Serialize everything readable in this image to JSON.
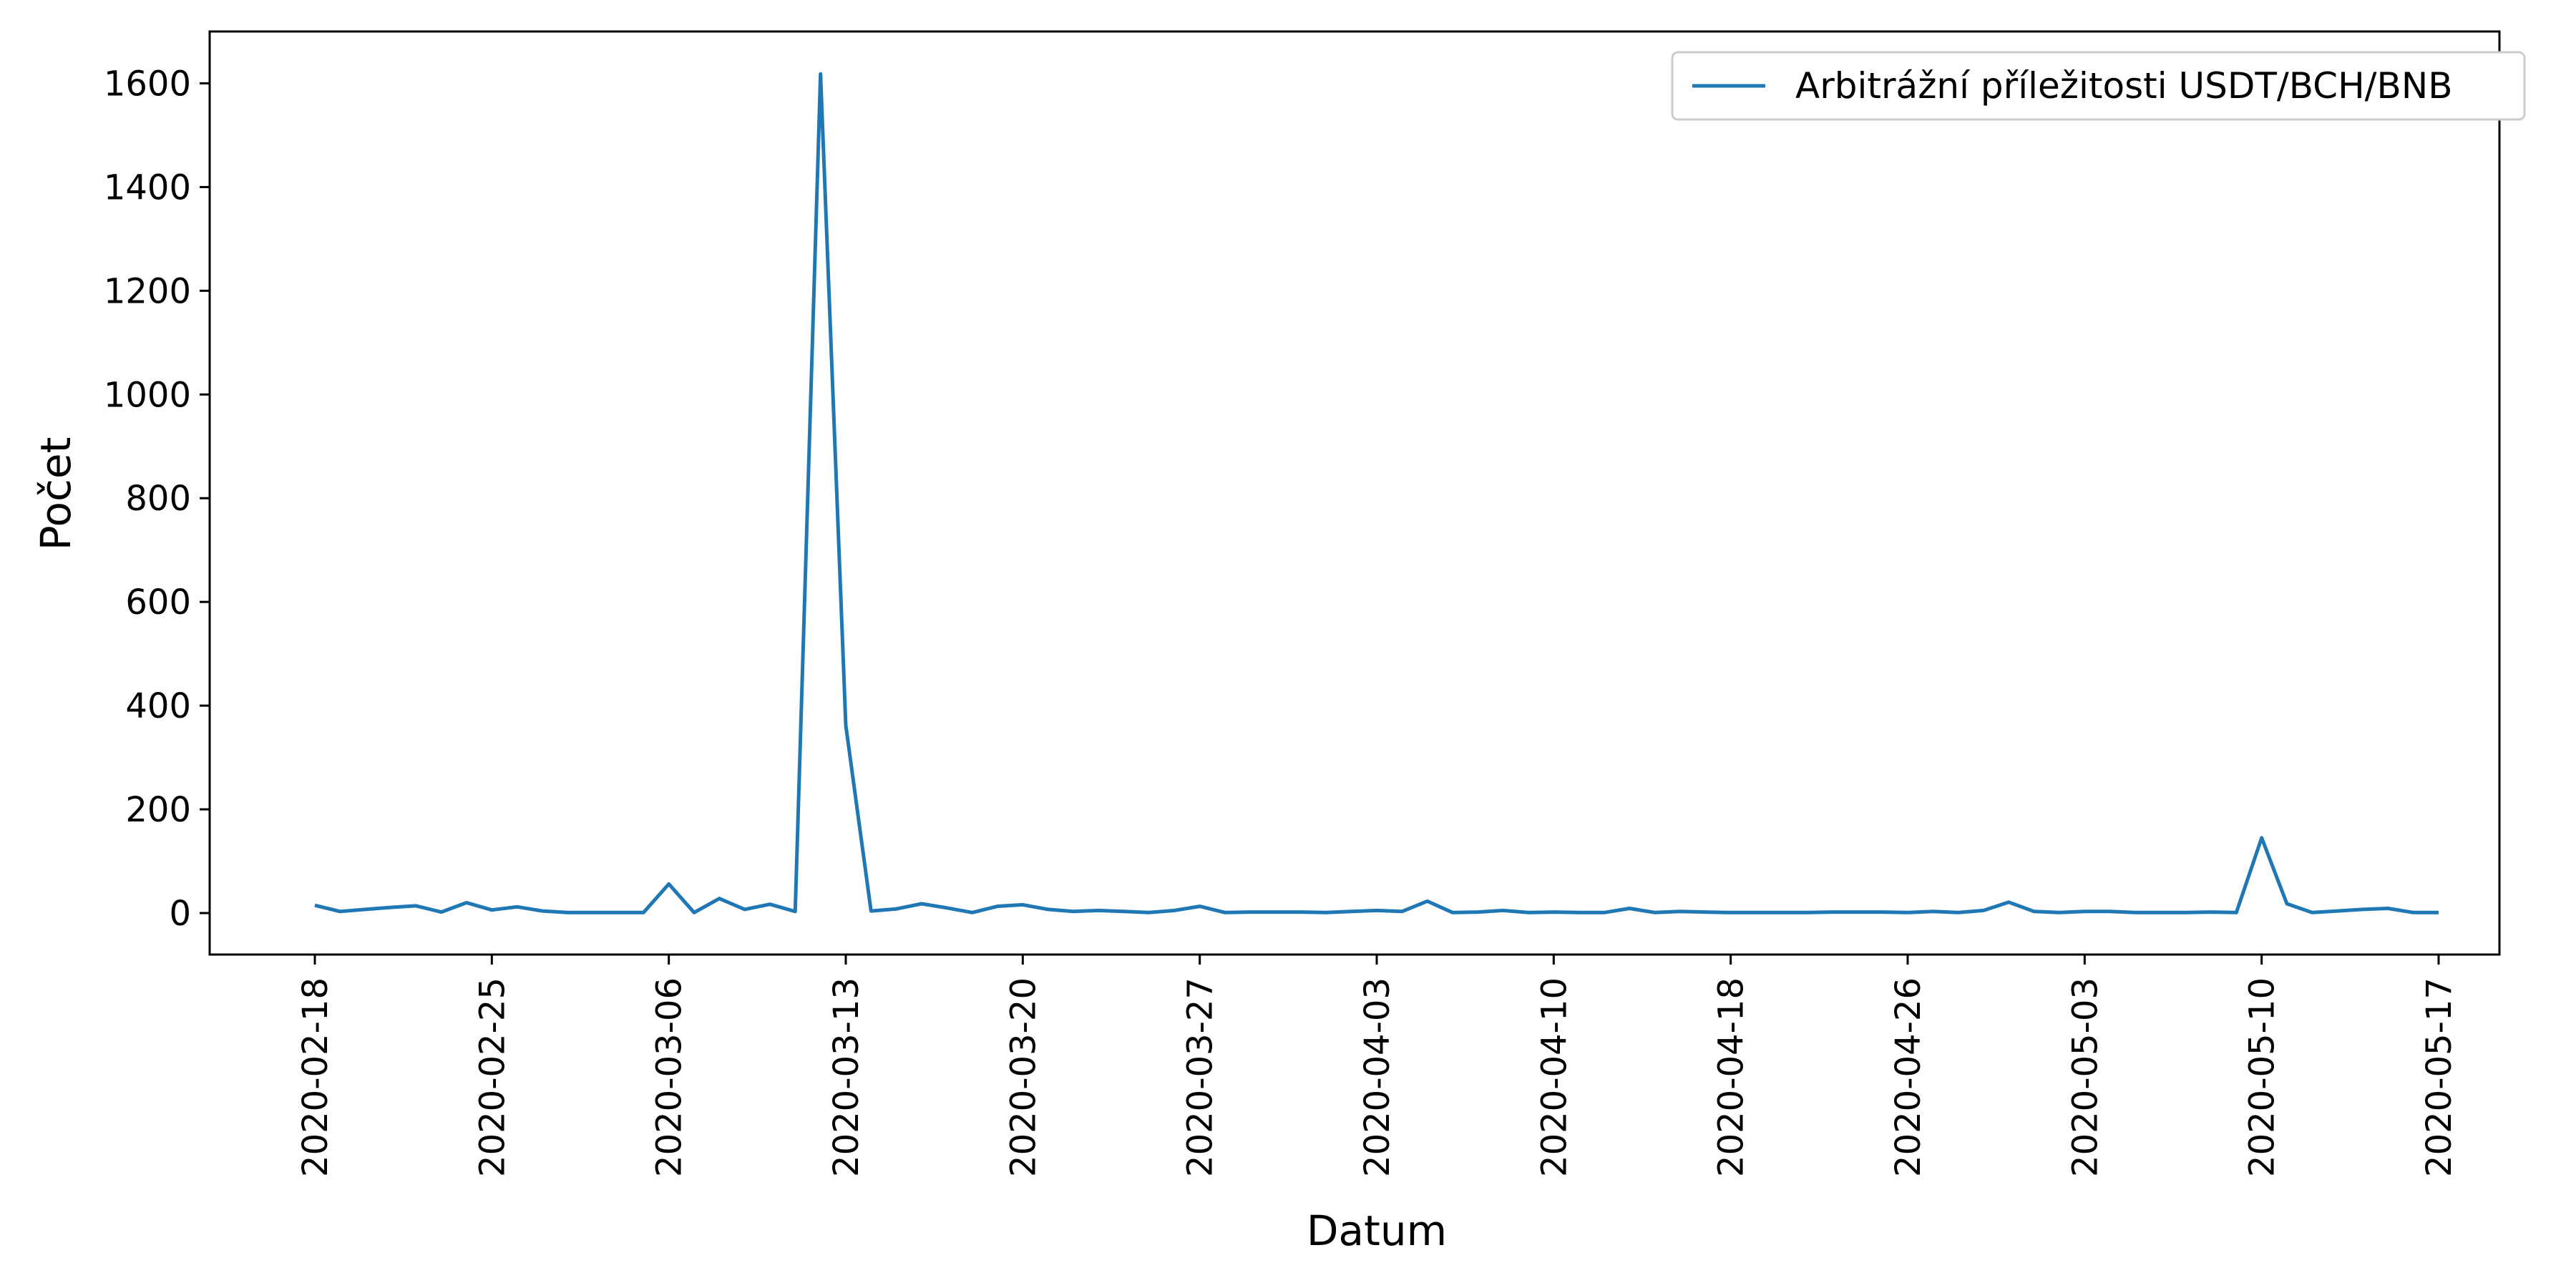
{
  "chart_data": {
    "type": "line",
    "xlabel": "Datum",
    "ylabel": "Počet",
    "x_tick_labels": [
      "2020-02-18",
      "2020-02-25",
      "2020-03-06",
      "2020-03-13",
      "2020-03-20",
      "2020-03-27",
      "2020-04-03",
      "2020-04-10",
      "2020-04-18",
      "2020-04-26",
      "2020-05-03",
      "2020-05-10",
      "2020-05-17"
    ],
    "y_ticks": [
      0,
      200,
      400,
      600,
      800,
      1000,
      1200,
      1400,
      1600
    ],
    "ylim": [
      -80,
      1700
    ],
    "grid": false,
    "legend_position": "top-right",
    "series": [
      {
        "name": "Arbitrážní příležitosti USDT/BCH/BNB",
        "color": "#1f77b4",
        "values": [
          15,
          3,
          7,
          11,
          14,
          2,
          20,
          6,
          12,
          4,
          1,
          1,
          1,
          1,
          56,
          1,
          28,
          7,
          17,
          3,
          1618,
          362,
          4,
          8,
          18,
          10,
          1,
          13,
          16,
          7,
          3,
          5,
          3,
          1,
          5,
          13,
          1,
          2,
          2,
          2,
          1,
          3,
          5,
          3,
          23,
          1,
          2,
          5,
          1,
          2,
          1,
          1,
          9,
          1,
          3,
          2,
          1,
          1,
          1,
          1,
          2,
          2,
          2,
          1,
          3,
          1,
          5,
          21,
          3,
          1,
          3,
          3,
          1,
          1,
          1,
          2,
          1,
          145,
          18,
          1,
          4,
          7,
          9,
          1,
          1
        ]
      }
    ]
  }
}
